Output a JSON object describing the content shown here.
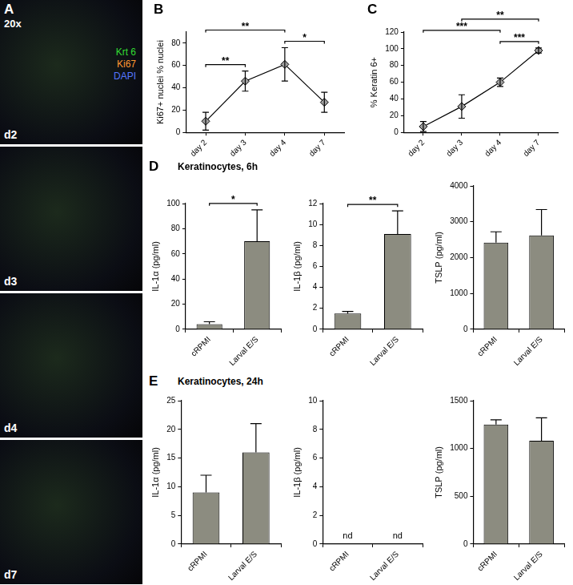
{
  "image_panel": {
    "panel": "A",
    "magnification": "20x",
    "channels": [
      {
        "name": "Krt 6",
        "color": "#33dd33"
      },
      {
        "name": "Ki67",
        "color": "#ff9933"
      },
      {
        "name": "DAPI",
        "color": "#5577ff"
      }
    ],
    "frames": [
      "d2",
      "d3",
      "d4",
      "d7"
    ]
  },
  "chart_data": [
    {
      "panel": "B",
      "type": "line",
      "categories": [
        "day 2",
        "day 3",
        "day 4",
        "day 7"
      ],
      "values": [
        10,
        46,
        61,
        27
      ],
      "errors": [
        8,
        9,
        15,
        9
      ],
      "color": "#000000",
      "marker": "diamond",
      "line_style": "solid",
      "y_label": "Ki67+ nuclei % nuclei",
      "ylim": [
        0,
        90
      ],
      "yticks": [
        0,
        20,
        40,
        60,
        80
      ],
      "grid": false,
      "significance": [
        {
          "from": "day 2",
          "to": "day 3",
          "label": "**"
        },
        {
          "from": "day 2",
          "to": "day 4",
          "label": "**"
        },
        {
          "from": "day 4",
          "to": "day 7",
          "label": "*"
        }
      ]
    },
    {
      "panel": "C",
      "type": "line",
      "categories": [
        "day 2",
        "day 3",
        "day 4",
        "day 7"
      ],
      "values": [
        7,
        31,
        60,
        98
      ],
      "errors": [
        6,
        14,
        5,
        3
      ],
      "color": "#000000",
      "marker": "diamond",
      "line_style": "solid",
      "y_label": "% Keratin 6+",
      "ylim": [
        0,
        120
      ],
      "yticks": [
        0,
        20,
        40,
        60,
        80,
        100,
        120
      ],
      "grid": false,
      "significance": [
        {
          "from": "day 2",
          "to": "day 4",
          "label": "***"
        },
        {
          "from": "day 3",
          "to": "day 7",
          "label": "**"
        },
        {
          "from": "day 4",
          "to": "day 7",
          "label": "***"
        }
      ]
    },
    {
      "panel": "D",
      "title": "Keratinocytes, 6h",
      "type": "bar",
      "categories": [
        "cRPMI",
        "Larval E/S"
      ],
      "values": [
        4,
        70
      ],
      "errors": [
        2,
        25
      ],
      "color": "#8c8c80",
      "y_label": "IL-1α (pg/ml)",
      "ylim": [
        0,
        100
      ],
      "yticks": [
        0,
        20,
        40,
        60,
        80,
        100
      ],
      "grid": false,
      "significance": [
        {
          "from": "cRPMI",
          "to": "Larval E/S",
          "label": "*"
        }
      ]
    },
    {
      "type": "bar",
      "categories": [
        "cRPMI",
        "Larval E/S"
      ],
      "values": [
        1.5,
        9.1
      ],
      "errors": [
        0.2,
        2.2
      ],
      "color": "#8c8c80",
      "y_label": "IL-1β (pg/ml)",
      "ylim": [
        0,
        12
      ],
      "yticks": [
        0,
        2,
        4,
        6,
        8,
        10,
        12
      ],
      "grid": false,
      "significance": [
        {
          "from": "cRPMI",
          "to": "Larval E/S",
          "label": "**"
        }
      ]
    },
    {
      "type": "bar",
      "categories": [
        "cRPMI",
        "Larval E/S"
      ],
      "values": [
        2420,
        2620
      ],
      "errors": [
        300,
        720
      ],
      "color": "#8c8c80",
      "y_label": "TSLP (pg/ml)",
      "ylim": [
        0,
        4000
      ],
      "yticks": [
        0,
        1000,
        2000,
        3000,
        4000
      ],
      "grid": false
    },
    {
      "panel": "E",
      "title": "Keratinocytes, 24h",
      "type": "bar",
      "categories": [
        "cRPMI",
        "Larval E/S"
      ],
      "values": [
        9,
        16
      ],
      "errors": [
        3,
        5
      ],
      "color": "#8c8c80",
      "y_label": "IL-1α (pg/ml)",
      "ylim": [
        0,
        25
      ],
      "yticks": [
        0,
        5,
        10,
        15,
        20,
        25
      ],
      "grid": false
    },
    {
      "type": "bar",
      "categories": [
        "cRPMI",
        "Larval E/S"
      ],
      "values": [
        null,
        null
      ],
      "value_labels": [
        "nd",
        "nd"
      ],
      "errors": [
        null,
        null
      ],
      "color": "#8c8c80",
      "y_label": "IL-1β (pg/ml)",
      "ylim": [
        0,
        10
      ],
      "yticks": [
        0,
        2,
        4,
        6,
        8,
        10
      ],
      "grid": false
    },
    {
      "type": "bar",
      "categories": [
        "cRPMI",
        "Larval E/S"
      ],
      "values": [
        1250,
        1080
      ],
      "errors": [
        50,
        240
      ],
      "color": "#8c8c80",
      "y_label": "TSLP (pg/ml)",
      "ylim": [
        0,
        1500
      ],
      "yticks": [
        0,
        500,
        1000,
        1500
      ],
      "grid": false
    }
  ]
}
